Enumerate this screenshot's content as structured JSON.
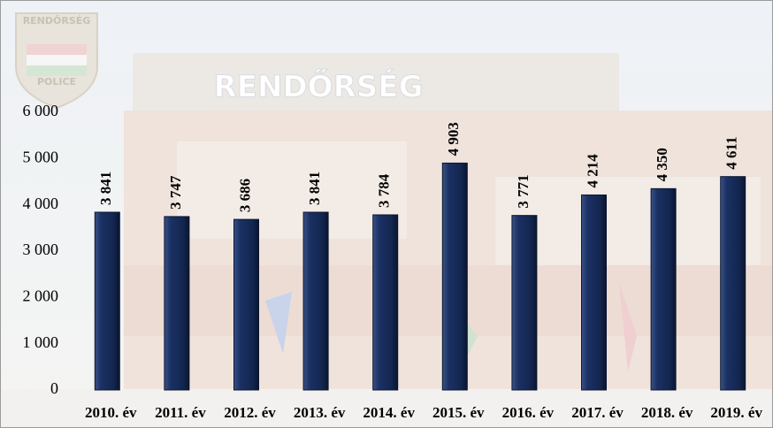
{
  "chart_data": {
    "type": "bar",
    "categories": [
      "2010. év",
      "2011. év",
      "2012. év",
      "2013. év",
      "2014. év",
      "2015. év",
      "2016. év",
      "2017. év",
      "2018. év",
      "2019. év"
    ],
    "values": [
      3841,
      3747,
      3686,
      3841,
      3784,
      4903,
      3771,
      4214,
      4350,
      4611
    ],
    "value_labels": [
      "3 841",
      "3 747",
      "3 686",
      "3 841",
      "3 784",
      "4 903",
      "3 771",
      "4 214",
      "4 350",
      "4 611"
    ],
    "color": "#13264f",
    "ylim": [
      0,
      6000
    ],
    "yticks": [
      0,
      {
        "value": 1000,
        "label": "1 000"
      },
      {
        "value": 2000,
        "label": "2 000"
      },
      {
        "value": 3000,
        "label": "3 000"
      },
      {
        "value": 4000,
        "label": "4 000"
      },
      {
        "value": 5000,
        "label": "5 000"
      },
      {
        "value": 6000,
        "label": "6 000"
      }
    ]
  },
  "background": {
    "logo_top": "RENDŐRSÉG",
    "logo_bottom": "POLICE",
    "building_sign": "RENDŐRSÉG"
  }
}
